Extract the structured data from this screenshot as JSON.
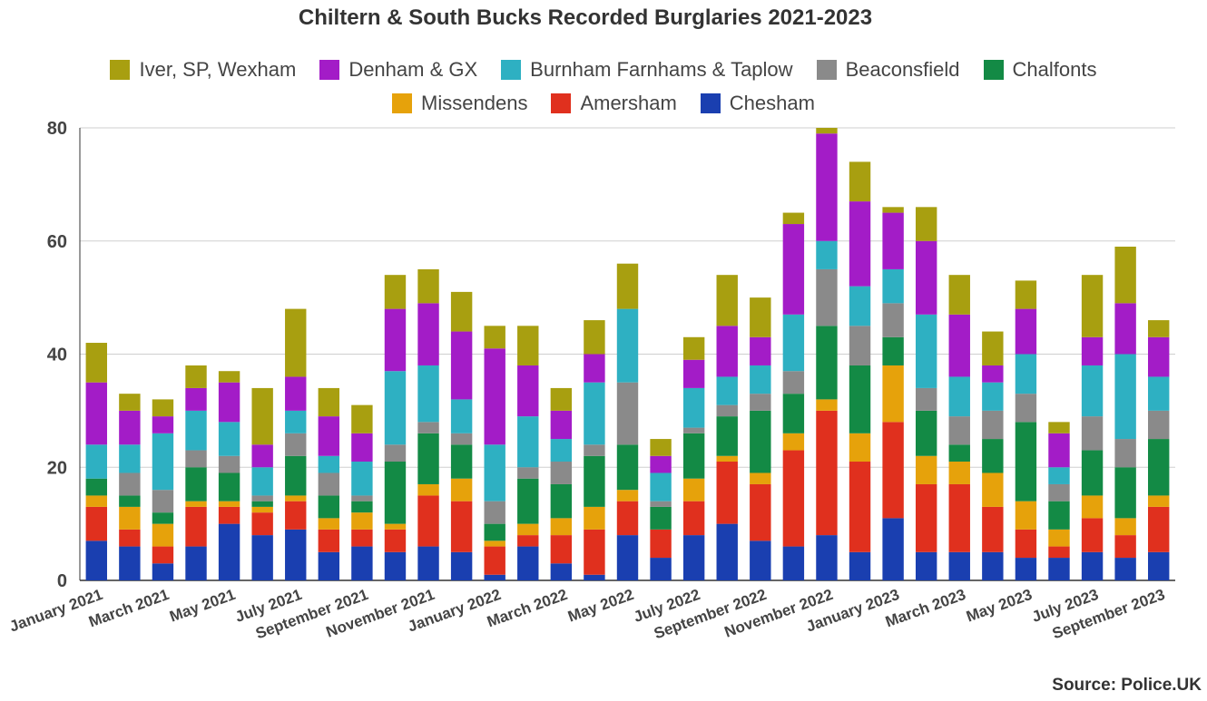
{
  "chart_data": {
    "type": "bar",
    "stacked": true,
    "title": "Chiltern & South Bucks Recorded Burglaries 2021-2023",
    "ylim": [
      0,
      80
    ],
    "yticks": [
      0,
      20,
      40,
      60,
      80
    ],
    "grid": true,
    "legend_position": "top",
    "categories": [
      "January 2021",
      "February 2021",
      "March 2021",
      "April 2021",
      "May 2021",
      "June 2021",
      "July 2021",
      "August 2021",
      "September 2021",
      "October 2021",
      "November 2021",
      "December 2021",
      "January 2022",
      "February 2022",
      "March 2022",
      "April 2022",
      "May 2022",
      "June 2022",
      "July 2022",
      "August 2022",
      "September 2022",
      "October 2022",
      "November 2022",
      "December 2022",
      "January 2023",
      "February 2023",
      "March 2023",
      "April 2023",
      "May 2023",
      "June 2023",
      "July 2023",
      "August 2023",
      "September 2023"
    ],
    "xtick_labels": [
      "January 2021",
      "March 2021",
      "May 2021",
      "July 2021",
      "September 2021",
      "November 2021",
      "January 2022",
      "March 2022",
      "May 2022",
      "July 2022",
      "September 2022",
      "November 2022",
      "January 2023",
      "March 2023",
      "May 2023",
      "July 2023",
      "September 2023"
    ],
    "series": [
      {
        "name": "Chesham",
        "color": "#1a3fb0",
        "values": [
          7,
          6,
          3,
          6,
          10,
          8,
          9,
          5,
          6,
          5,
          6,
          5,
          1,
          6,
          3,
          1,
          8,
          4,
          8,
          10,
          7,
          6,
          8,
          5,
          11,
          5,
          5,
          5,
          4,
          4,
          5,
          4,
          5
        ]
      },
      {
        "name": "Amersham",
        "color": "#e0301e",
        "values": [
          6,
          3,
          3,
          7,
          3,
          4,
          5,
          4,
          3,
          4,
          9,
          9,
          5,
          2,
          5,
          8,
          6,
          5,
          6,
          11,
          10,
          17,
          22,
          16,
          17,
          12,
          12,
          8,
          5,
          2,
          6,
          4,
          8
        ]
      },
      {
        "name": "Missendens",
        "color": "#e6a20b",
        "values": [
          2,
          4,
          4,
          1,
          1,
          1,
          1,
          2,
          3,
          1,
          2,
          4,
          1,
          2,
          3,
          4,
          2,
          0,
          4,
          1,
          2,
          3,
          2,
          5,
          10,
          5,
          4,
          6,
          5,
          3,
          4,
          3,
          2
        ]
      },
      {
        "name": "Chalfonts",
        "color": "#138a45",
        "values": [
          3,
          2,
          2,
          6,
          5,
          1,
          7,
          4,
          2,
          11,
          9,
          6,
          3,
          8,
          6,
          9,
          8,
          4,
          8,
          7,
          11,
          7,
          13,
          12,
          5,
          8,
          3,
          6,
          14,
          5,
          8,
          9,
          10
        ]
      },
      {
        "name": "Beaconsfield",
        "color": "#8a8a8a",
        "values": [
          0,
          4,
          4,
          3,
          3,
          1,
          4,
          4,
          1,
          3,
          2,
          2,
          4,
          2,
          4,
          2,
          11,
          1,
          1,
          2,
          3,
          4,
          10,
          7,
          6,
          4,
          5,
          5,
          5,
          3,
          6,
          5,
          5
        ]
      },
      {
        "name": "Burnham Farnhams & Taplow",
        "color": "#2eb0c2",
        "values": [
          6,
          5,
          10,
          7,
          6,
          5,
          4,
          3,
          6,
          13,
          10,
          6,
          10,
          9,
          4,
          11,
          13,
          5,
          7,
          5,
          5,
          10,
          5,
          7,
          6,
          13,
          7,
          5,
          7,
          3,
          9,
          15,
          6
        ]
      },
      {
        "name": "Denham & GX",
        "color": "#a31cc7",
        "values": [
          11,
          6,
          3,
          4,
          7,
          4,
          6,
          7,
          5,
          11,
          11,
          12,
          17,
          9,
          5,
          5,
          0,
          3,
          5,
          9,
          5,
          16,
          19,
          15,
          10,
          13,
          11,
          3,
          8,
          6,
          5,
          9,
          7
        ]
      },
      {
        "name": "Iver, SP, Wexham",
        "color": "#a89f10",
        "values": [
          7,
          3,
          3,
          4,
          2,
          10,
          12,
          5,
          5,
          6,
          6,
          7,
          4,
          7,
          4,
          6,
          8,
          3,
          4,
          9,
          7,
          2,
          2,
          7,
          1,
          6,
          7,
          6,
          5,
          2,
          11,
          10,
          3
        ]
      }
    ],
    "legend_rows": [
      [
        "Iver, SP, Wexham",
        "Denham & GX",
        "Burnham Farnhams & Taplow",
        "Beaconsfield",
        "Chalfonts"
      ],
      [
        "Missendens",
        "Amersham",
        "Chesham"
      ]
    ],
    "source": "Source: Police.UK"
  }
}
